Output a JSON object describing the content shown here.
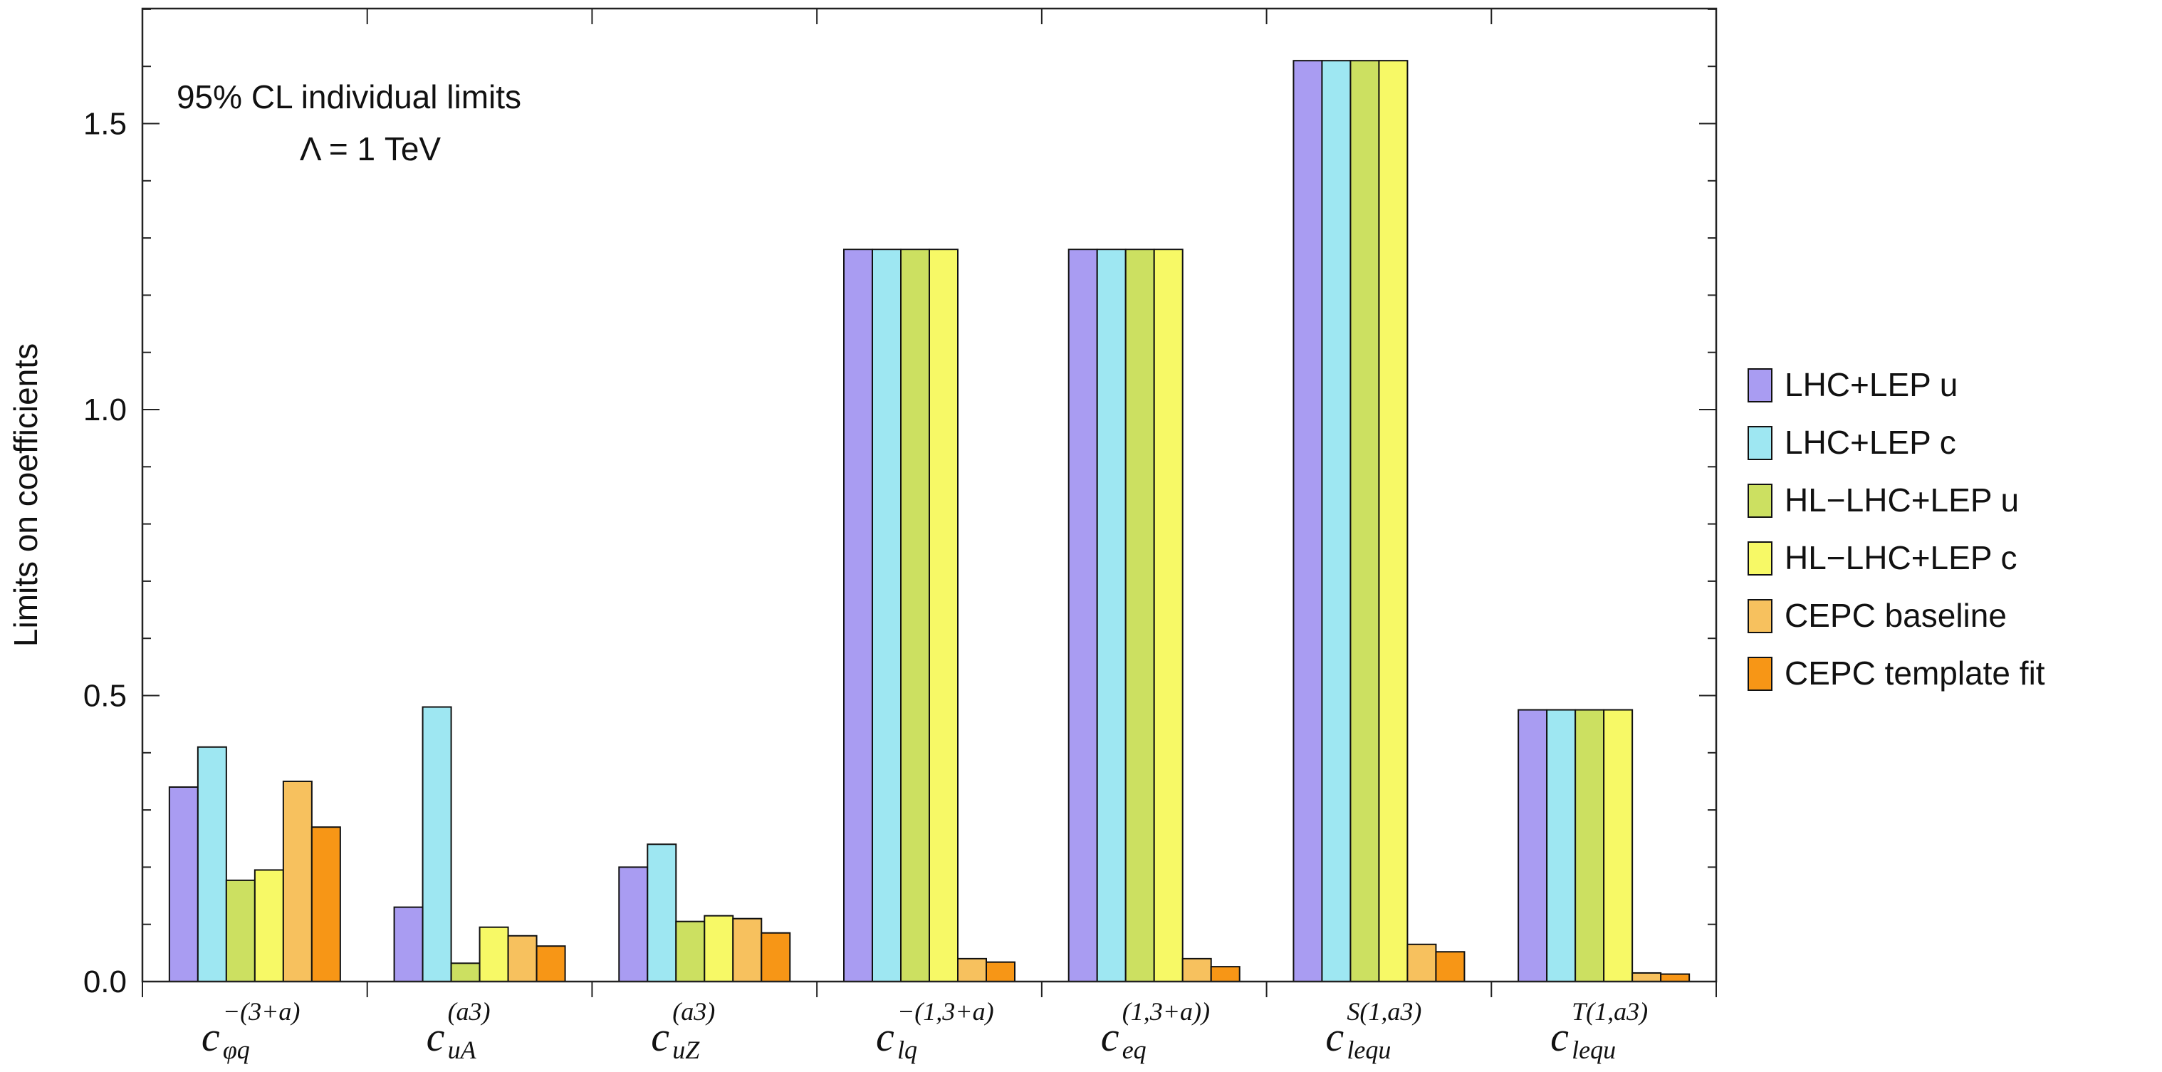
{
  "chart_data": {
    "type": "bar",
    "title": "",
    "xlabel": "",
    "ylabel": "Limits on coefficients",
    "ylim": [
      0,
      1.7
    ],
    "yticks": [
      "0.0",
      "0.5",
      "1.0",
      "1.5"
    ],
    "ytick_values": [
      0,
      0.5,
      1.0,
      1.5
    ],
    "grid": false,
    "legend_position": "right",
    "annotation_lines": [
      "95% CL individual limits",
      "Λ = 1 TeV"
    ],
    "categories": [
      {
        "main": "c",
        "sub": "φq",
        "sup": "−(3+a)"
      },
      {
        "main": "c",
        "sub": "uA",
        "sup": "(a3)"
      },
      {
        "main": "c",
        "sub": "uZ",
        "sup": "(a3)"
      },
      {
        "main": "c",
        "sub": "lq",
        "sup": "−(1,3+a)"
      },
      {
        "main": "c",
        "sub": "eq",
        "sup": "(1,3+a))"
      },
      {
        "main": "c",
        "sub": "lequ",
        "sup": "S(1,a3)"
      },
      {
        "main": "c",
        "sub": "lequ",
        "sup": "T(1,a3)"
      }
    ],
    "series": [
      {
        "name": "LHC+LEP u",
        "color": "#a99cf2",
        "values": [
          0.34,
          0.13,
          0.2,
          1.28,
          1.28,
          1.61,
          0.475
        ]
      },
      {
        "name": "LHC+LEP c",
        "color": "#9ee7f2",
        "values": [
          0.41,
          0.48,
          0.24,
          1.28,
          1.28,
          1.61,
          0.475
        ]
      },
      {
        "name": "HL−LHC+LEP u",
        "color": "#cce061",
        "values": [
          0.177,
          0.032,
          0.105,
          1.28,
          1.28,
          1.61,
          0.475
        ]
      },
      {
        "name": "HL−LHC+LEP c",
        "color": "#f7f966",
        "values": [
          0.195,
          0.095,
          0.115,
          1.28,
          1.28,
          1.61,
          0.475
        ]
      },
      {
        "name": "CEPC baseline",
        "color": "#f7c15e",
        "values": [
          0.35,
          0.08,
          0.11,
          0.04,
          0.04,
          0.065,
          0.015
        ]
      },
      {
        "name": "CEPC template fit",
        "color": "#f79616",
        "values": [
          0.27,
          0.062,
          0.085,
          0.034,
          0.026,
          0.052,
          0.013
        ]
      }
    ]
  }
}
